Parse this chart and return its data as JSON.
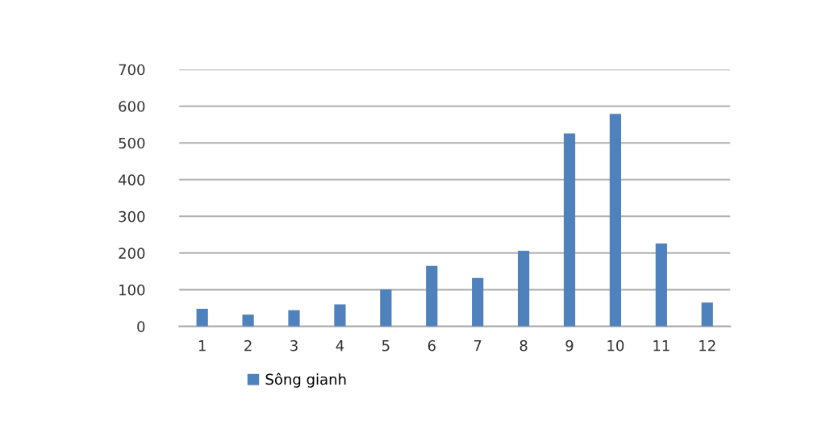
{
  "chart_data": {
    "type": "bar",
    "categories": [
      "1",
      "2",
      "3",
      "4",
      "5",
      "6",
      "7",
      "8",
      "9",
      "10",
      "11",
      "12"
    ],
    "series": [
      {
        "name": "Sông gianh",
        "color": "#4f81bd",
        "values": [
          48,
          32,
          44,
          60,
          101,
          165,
          132,
          206,
          526,
          579,
          226,
          65
        ]
      }
    ],
    "ylim": [
      0,
      700
    ],
    "yticks": [
      0,
      100,
      200,
      300,
      400,
      500,
      600,
      700
    ],
    "grid": "y",
    "legend": "bottom"
  }
}
